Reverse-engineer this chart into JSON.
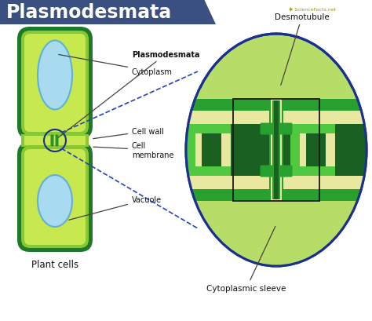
{
  "title": "Plasmodesmata",
  "title_bg": "#3a5080",
  "title_text_color": "#ffffff",
  "bg_color": "#ffffff",
  "cell_dark_green": "#1e7a28",
  "cell_mid_green": "#88c832",
  "cell_light_green": "#c8e850",
  "vacuole_fill": "#a8daf0",
  "vacuole_edge": "#60b0d8",
  "junction_fill": "#c8e850",
  "circle_border": "#1a3090",
  "oval_bg": "#b8dc68",
  "oval_border": "#1a3090",
  "zoom_dark": "#1a6020",
  "zoom_mid": "#28a030",
  "zoom_bright": "#50c840",
  "zoom_light": "#c0e040",
  "zoom_cream": "#e8e8a0",
  "zoom_white": "#f8f8d8",
  "label_dark": "#111111",
  "dash_color": "#2244bb",
  "ann_color": "#444444",
  "labels": {
    "plasmodesmata": "Plasmodesmata",
    "cytoplasm": "Cytoplasm",
    "cell_wall": "Cell wall",
    "cell_membrane": "Cell\nmembrane",
    "vacuole": "Vacuole",
    "plant_cells": "Plant cells",
    "desmotubule": "Desmotubule",
    "cytoplasmic_sleeve": "Cytoplasmic sleeve"
  }
}
